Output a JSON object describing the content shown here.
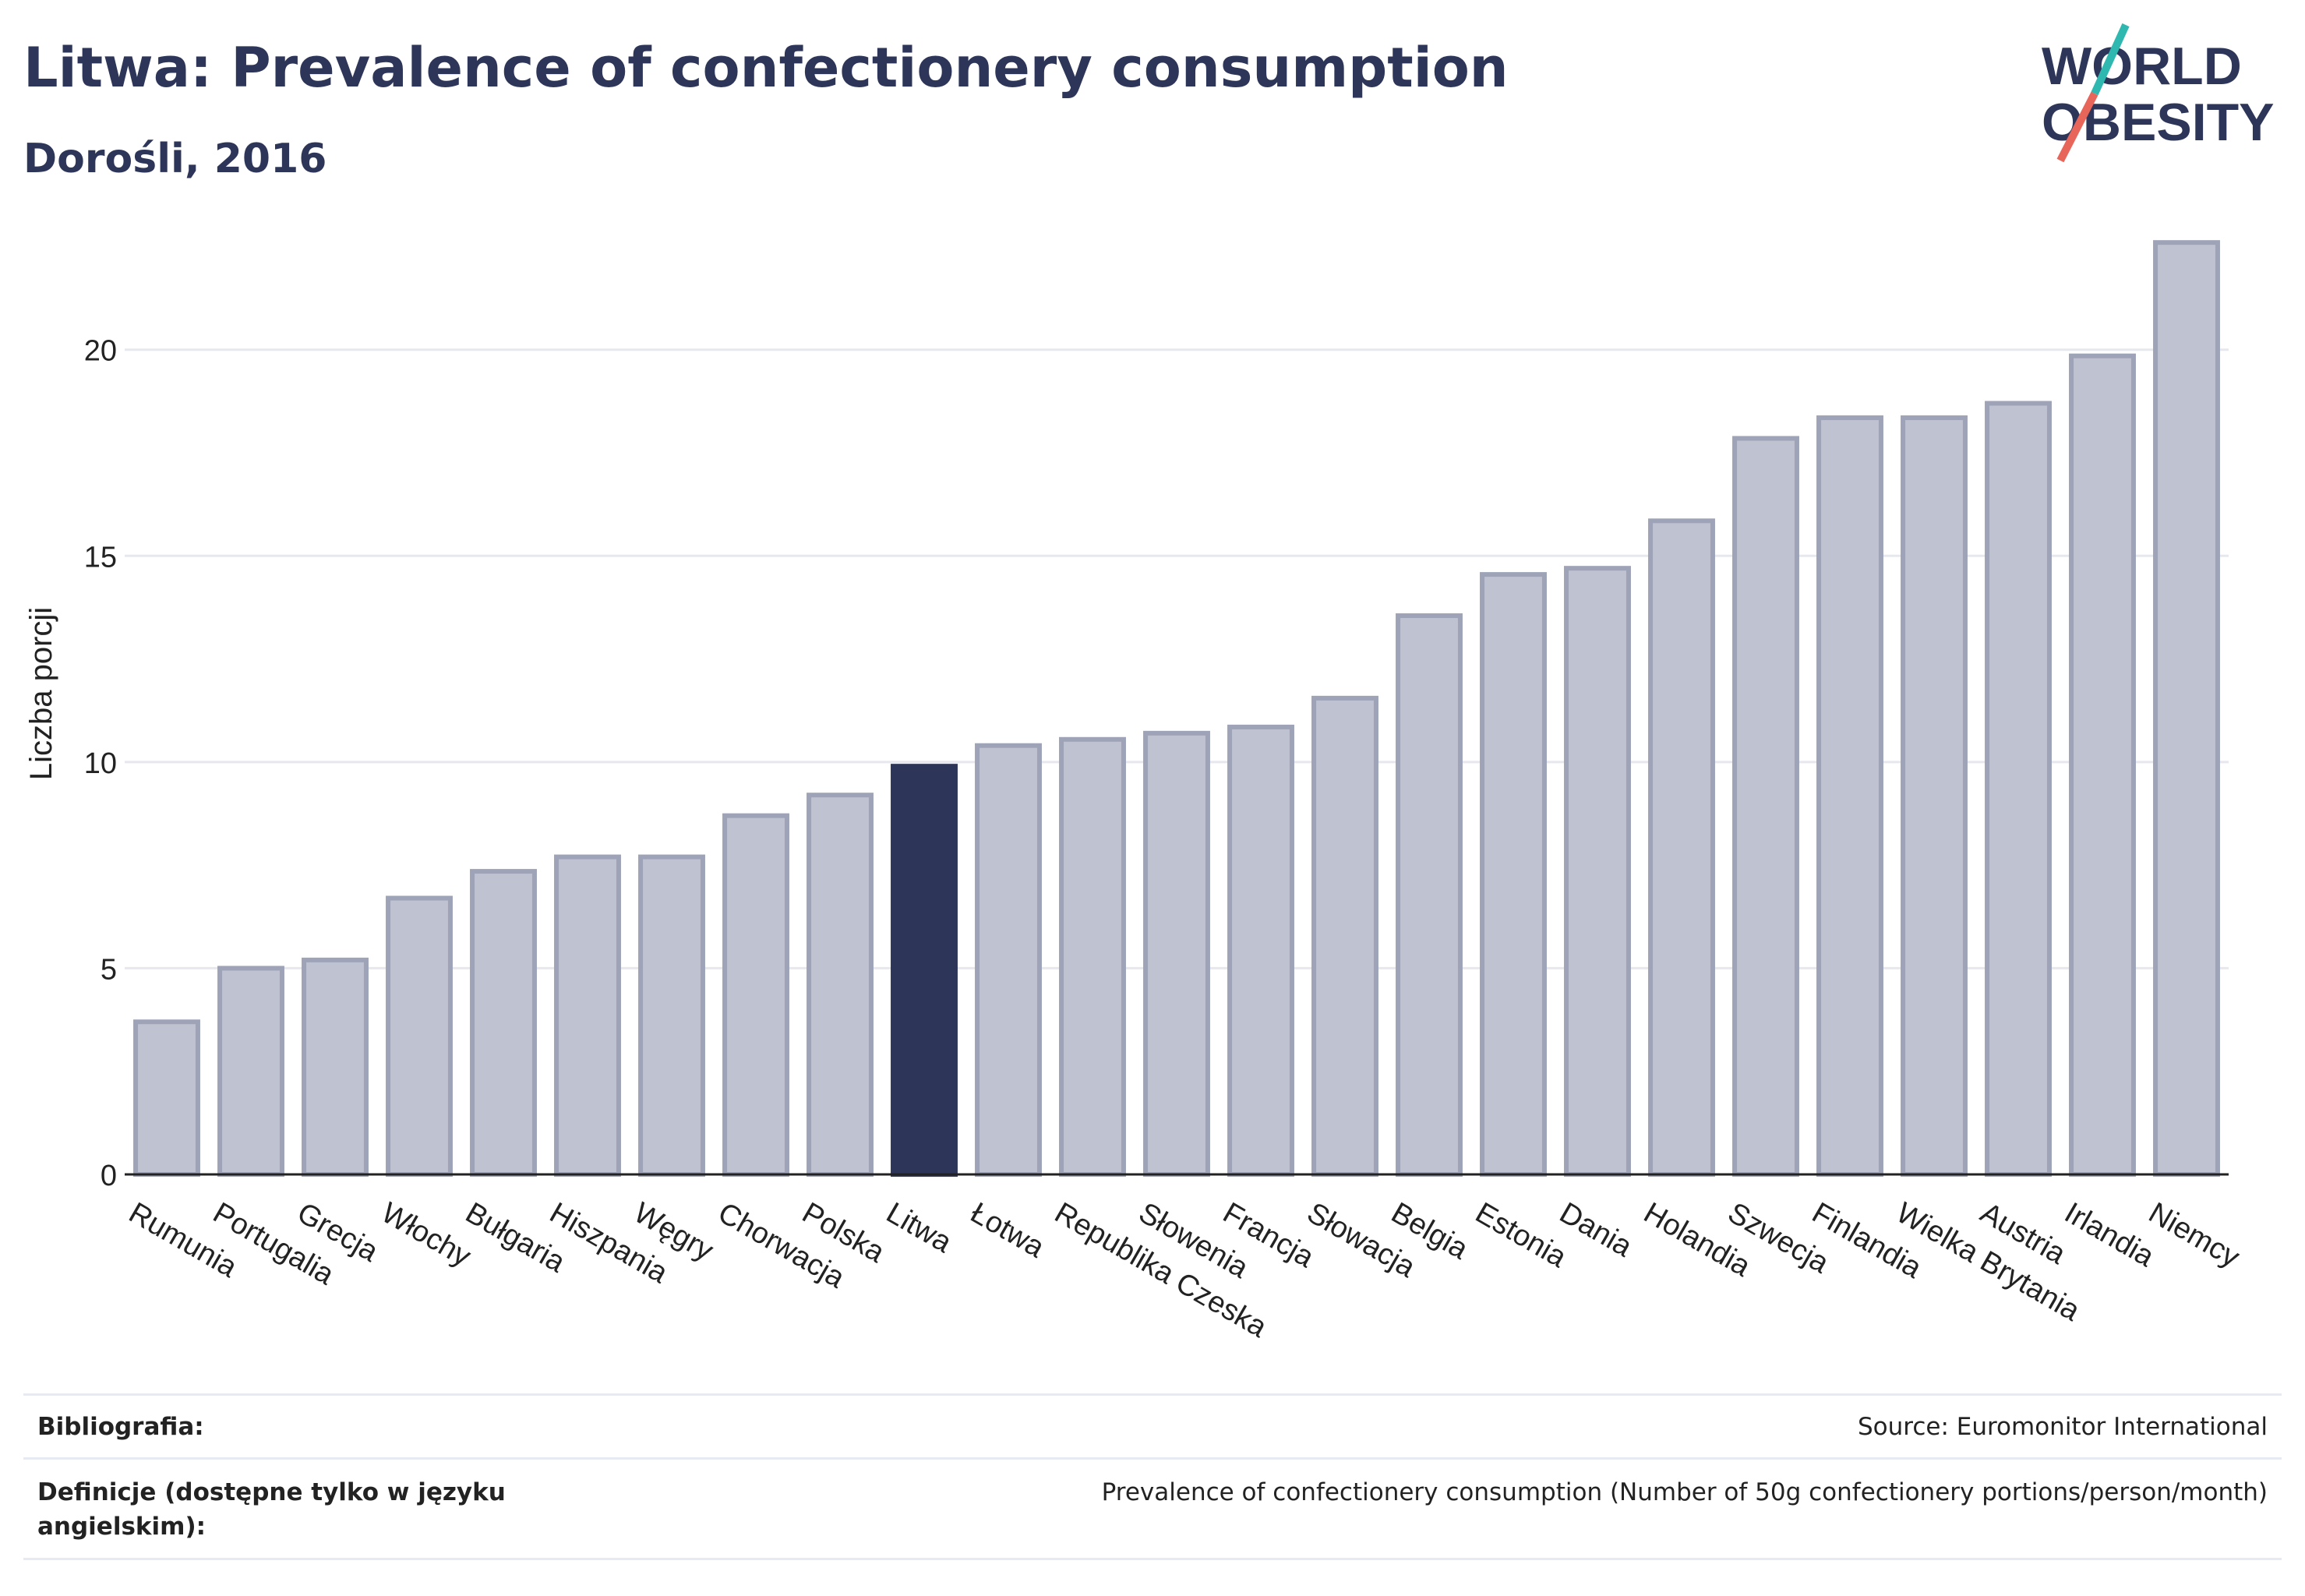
{
  "header": {
    "title": "Litwa: Prevalence of confectionery consumption",
    "subtitle": "Dorośli, 2016"
  },
  "logo": {
    "line1": "WORLD",
    "line2": "OBESITY",
    "accent_colors": [
      "#2fb8b0",
      "#e8655a"
    ]
  },
  "colors": {
    "bar": "#bfc2d0",
    "bar_stroke": "#9ea3b8",
    "highlight": "#2d3658",
    "grid": "#e6e8ee",
    "axis": "#222222",
    "text": "#2d3658"
  },
  "chart_data": {
    "type": "bar",
    "ylabel": "Liczba porcji",
    "xlabel": "",
    "ylim": [
      0,
      23
    ],
    "yticks": [
      0,
      5,
      10,
      15,
      20
    ],
    "grid": true,
    "highlight": "Litwa",
    "categories": [
      "Rumunia",
      "Portugalia",
      "Grecja",
      "Włochy",
      "Bułgaria",
      "Hiszpania",
      "Węgry",
      "Chorwacja",
      "Polska",
      "Litwa",
      "Łotwa",
      "Republika Czeska",
      "Słowenia",
      "Francja",
      "Słowacja",
      "Belgia",
      "Estonia",
      "Dania",
      "Holandia",
      "Szwecja",
      "Finlandia",
      "Wielka Brytania",
      "Austria",
      "Irlandia",
      "Niemcy"
    ],
    "values": [
      3.7,
      5.0,
      5.2,
      6.7,
      7.35,
      7.7,
      7.7,
      8.7,
      9.2,
      9.9,
      10.4,
      10.55,
      10.7,
      10.85,
      11.55,
      13.55,
      14.55,
      14.7,
      15.85,
      17.85,
      18.35,
      18.35,
      18.7,
      19.85,
      22.6
    ]
  },
  "footer": {
    "bibliography_label": "Bibliografia:",
    "bibliography_value": "Source: Euromonitor International",
    "definitions_label": "Definicje (dostępne tylko w języku angielskim):",
    "definitions_value": "Prevalence of confectionery consumption (Number of 50g confectionery portions/person/month)"
  }
}
